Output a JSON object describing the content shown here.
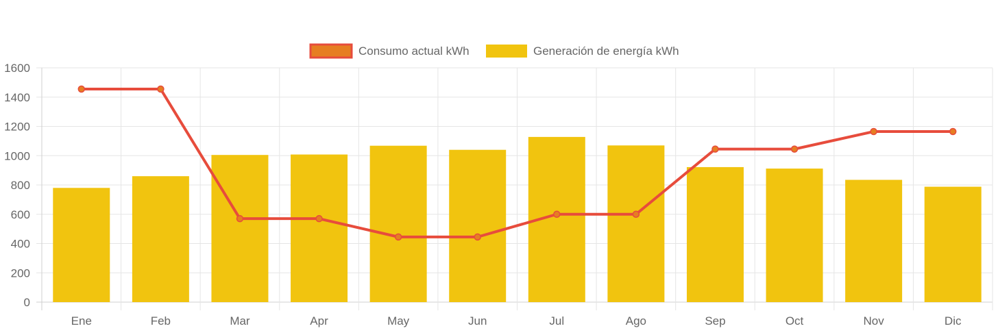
{
  "chart_data": {
    "type": "bar",
    "categories": [
      "Ene",
      "Feb",
      "Mar",
      "Apr",
      "May",
      "Jun",
      "Jul",
      "Ago",
      "Sep",
      "Oct",
      "Nov",
      "Dic"
    ],
    "series": [
      {
        "name": "Consumo actual kWh",
        "kind": "line",
        "color": "#e74c3c",
        "fill": "#e67e22",
        "values": [
          1455,
          1455,
          570,
          570,
          445,
          445,
          600,
          600,
          1045,
          1045,
          1165,
          1165
        ]
      },
      {
        "name": "Generación de energía kWh",
        "kind": "bar",
        "color": "#f1c40f",
        "values": [
          780,
          860,
          1005,
          1008,
          1068,
          1040,
          1128,
          1070,
          922,
          912,
          835,
          788
        ]
      }
    ],
    "yticks": [
      "0",
      "200",
      "400",
      "600",
      "800",
      "1000",
      "1200",
      "1400",
      "1600"
    ],
    "ylim": [
      0,
      1600
    ],
    "grid": true,
    "legend_position": "top-center"
  }
}
